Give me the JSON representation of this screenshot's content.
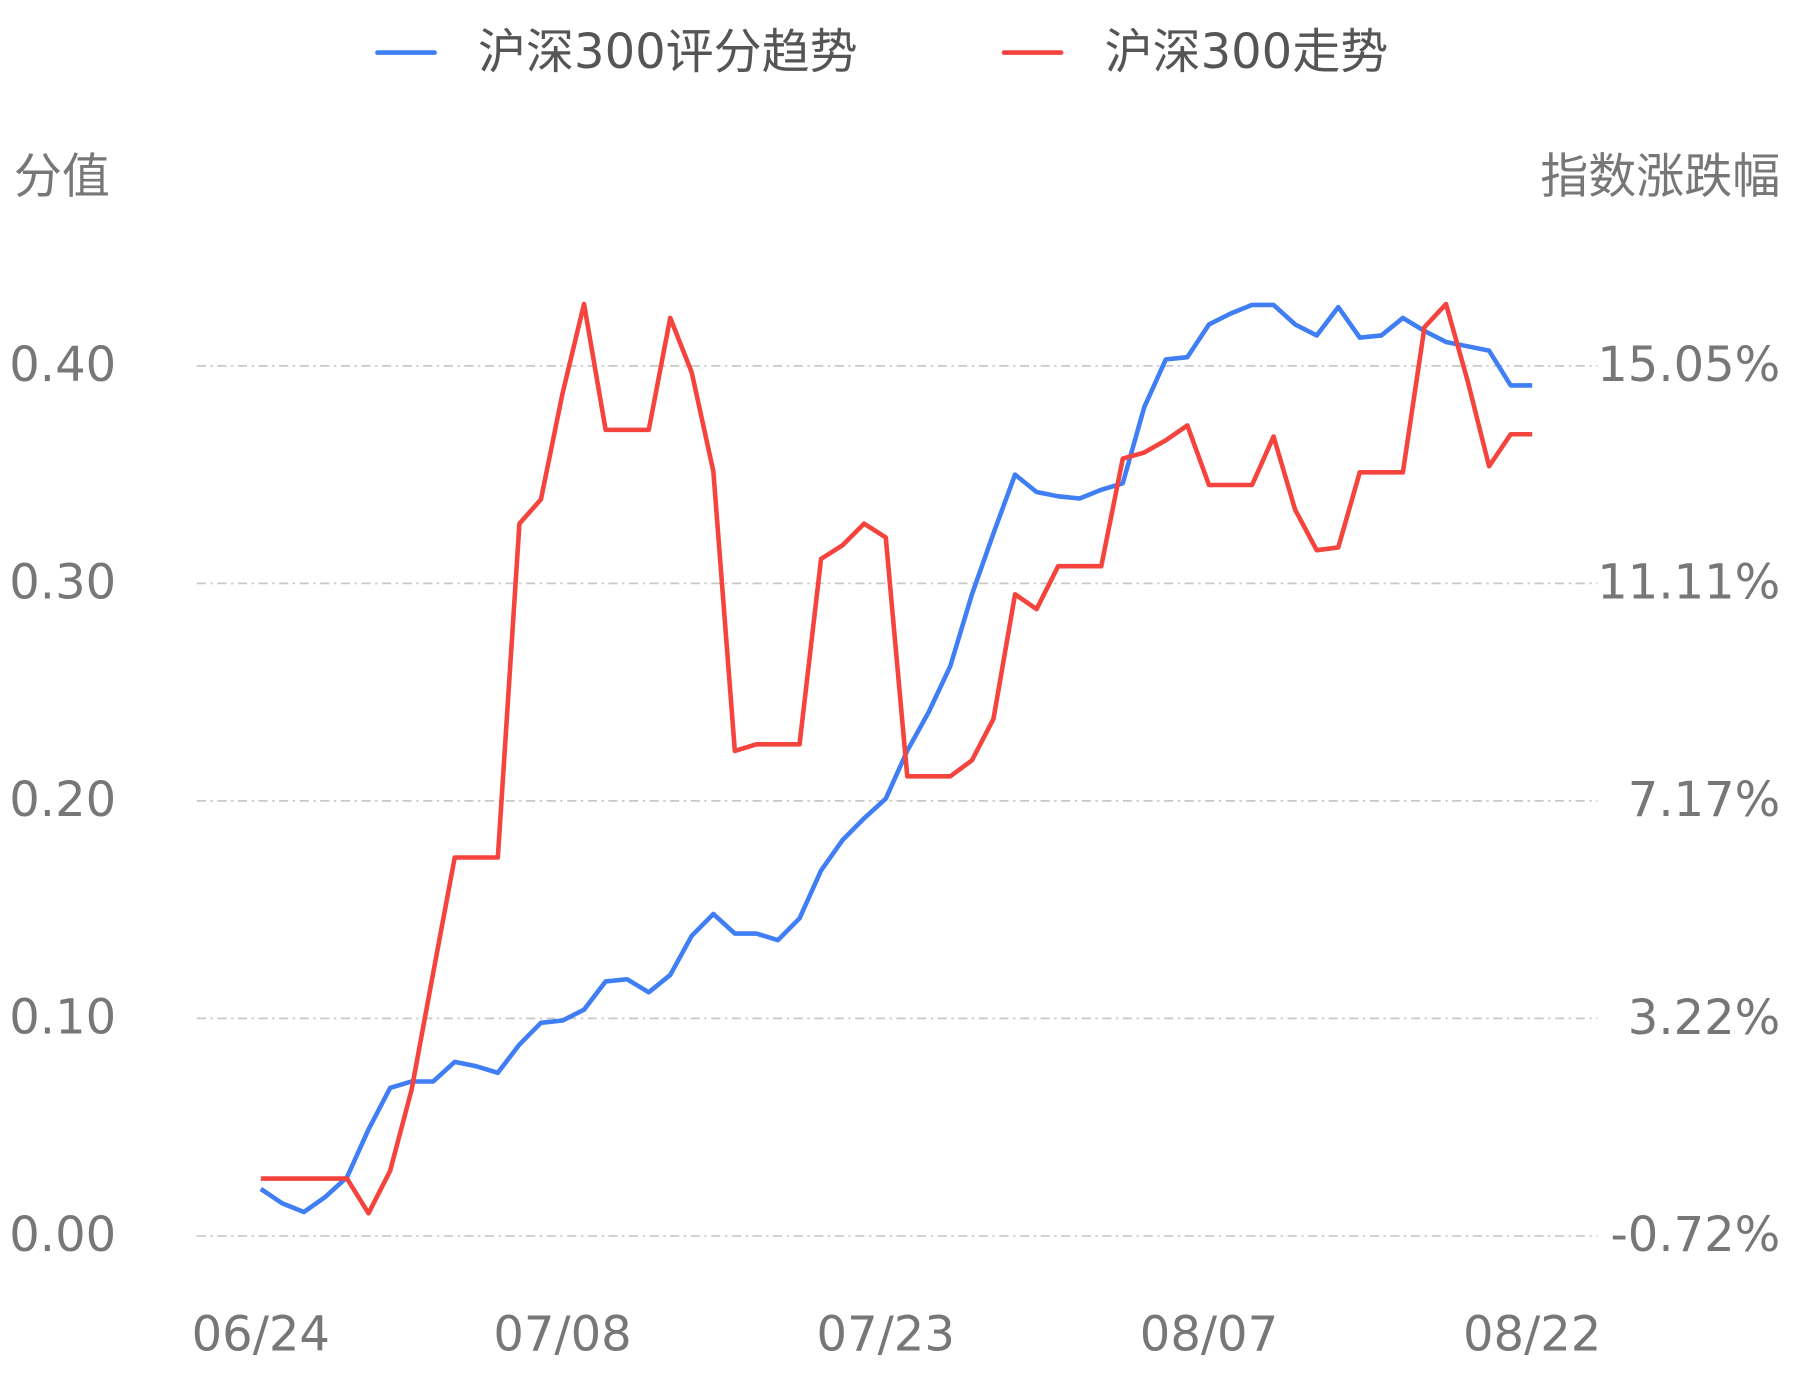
{
  "chart_data": {
    "type": "line",
    "ylabel": "分值",
    "y2label": "指数涨跌幅",
    "categories": [
      "06/24",
      null,
      null,
      null,
      null,
      null,
      null,
      null,
      null,
      null,
      null,
      null,
      null,
      null,
      "07/08",
      null,
      null,
      null,
      null,
      null,
      null,
      null,
      null,
      null,
      null,
      null,
      null,
      null,
      null,
      "07/23",
      null,
      null,
      null,
      null,
      null,
      null,
      null,
      null,
      null,
      null,
      null,
      null,
      null,
      null,
      "08/07",
      null,
      null,
      null,
      null,
      null,
      null,
      null,
      null,
      null,
      null,
      null,
      null,
      null,
      null,
      "08/22"
    ],
    "ylim": [
      0,
      0.435
    ],
    "yticks": [
      {
        "value": 0,
        "label": "0.00"
      },
      {
        "value": 0.1,
        "label": "0.10"
      },
      {
        "value": 0.2,
        "label": "0.20"
      },
      {
        "value": 0.3,
        "label": "0.30"
      },
      {
        "value": 0.4,
        "label": "0.40"
      }
    ],
    "y2lim": [
      -0.72,
      16.43
    ],
    "y2ticks": [
      {
        "value": -0.72,
        "label": "-0.72%"
      },
      {
        "value": 3.22,
        "label": "3.22%"
      },
      {
        "value": 7.17,
        "label": "7.17%"
      },
      {
        "value": 11.11,
        "label": "11.11%"
      },
      {
        "value": 15.05,
        "label": "15.05%"
      }
    ],
    "grid": true,
    "series": [
      {
        "name": "沪深300评分趋势",
        "color": "#3f7ef5",
        "values": [
          0.0216,
          0.015,
          0.011,
          0.018,
          0.027,
          0.049,
          0.068,
          0.071,
          0.071,
          0.08,
          0.078,
          0.075,
          0.088,
          0.098,
          0.099,
          0.104,
          0.117,
          0.118,
          0.112,
          0.12,
          0.138,
          0.148,
          0.139,
          0.139,
          0.136,
          0.146,
          0.168,
          0.182,
          0.192,
          0.201,
          0.223,
          0.241,
          0.262,
          0.295,
          0.323,
          0.35,
          0.342,
          0.34,
          0.339,
          0.343,
          0.346,
          0.381,
          0.403,
          0.404,
          0.419,
          0.424,
          0.428,
          0.428,
          0.419,
          0.414,
          0.427,
          0.413,
          0.414,
          0.422,
          0.416,
          0.411,
          0.409,
          0.407,
          0.391,
          0.391
        ]
      },
      {
        "name": "沪深300走势",
        "color": "#f5433d",
        "axis": "y2",
        "values": [
          0.32,
          0.32,
          0.32,
          0.32,
          0.32,
          -0.31,
          0.46,
          1.93,
          4.05,
          6.14,
          6.14,
          6.14,
          12.19,
          12.63,
          14.55,
          16.17,
          13.89,
          13.89,
          13.89,
          15.92,
          14.93,
          13.14,
          8.07,
          8.19,
          8.19,
          8.19,
          11.55,
          11.8,
          12.19,
          11.94,
          7.61,
          7.61,
          7.61,
          7.9,
          8.65,
          10.91,
          10.64,
          11.42,
          11.42,
          11.42,
          13.37,
          13.48,
          13.7,
          13.97,
          12.89,
          12.89,
          12.89,
          13.77,
          12.44,
          11.71,
          11.76,
          13.12,
          13.12,
          13.12,
          15.75,
          16.17,
          14.78,
          13.23,
          13.81,
          13.81
        ]
      }
    ]
  }
}
